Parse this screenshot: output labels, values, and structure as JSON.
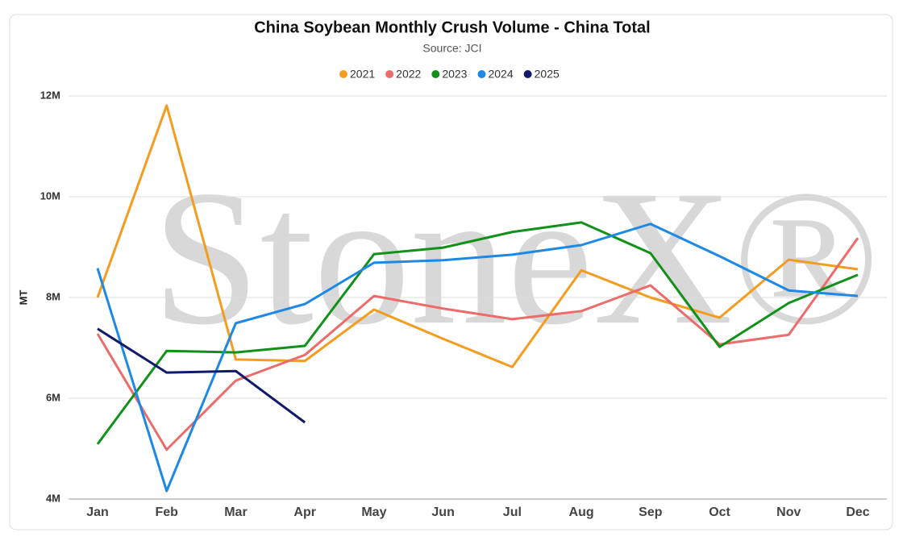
{
  "chart_data": {
    "type": "line",
    "title": "China Soybean Monthly Crush Volume - China Total",
    "subtitle": "Source: JCI",
    "ylabel": "MT",
    "watermark": "StoneX®",
    "categories": [
      "Jan",
      "Feb",
      "Mar",
      "Apr",
      "May",
      "Jun",
      "Jul",
      "Aug",
      "Sep",
      "Oct",
      "Nov",
      "Dec"
    ],
    "series": [
      {
        "name": "2021",
        "color": "#f39c1f",
        "values": [
          8000000,
          11810000,
          6770000,
          6740000,
          7760000,
          7180000,
          6620000,
          8540000,
          8000000,
          7600000,
          8750000,
          8560000
        ]
      },
      {
        "name": "2022",
        "color": "#ec6b6b",
        "values": [
          7280000,
          4980000,
          6350000,
          6860000,
          8030000,
          7780000,
          7570000,
          7730000,
          8240000,
          7070000,
          7260000,
          9180000
        ]
      },
      {
        "name": "2023",
        "color": "#12911a",
        "values": [
          5090000,
          6940000,
          6910000,
          7040000,
          8860000,
          8990000,
          9300000,
          9490000,
          8880000,
          7020000,
          7890000,
          8450000
        ]
      },
      {
        "name": "2024",
        "color": "#1e88e5",
        "values": [
          8580000,
          4160000,
          7490000,
          7870000,
          8690000,
          8740000,
          8850000,
          9040000,
          9460000,
          8820000,
          8140000,
          8030000
        ]
      },
      {
        "name": "2025",
        "color": "#101a6b",
        "values": [
          7380000,
          6510000,
          6540000,
          5520000,
          null,
          null,
          null,
          null,
          null,
          null,
          null,
          null
        ]
      }
    ],
    "ylim": [
      4000000,
      12000000
    ],
    "yticks": [
      {
        "value": 4000000,
        "label": "4M"
      },
      {
        "value": 6000000,
        "label": "6M"
      },
      {
        "value": 8000000,
        "label": "8M"
      },
      {
        "value": 10000000,
        "label": "10M"
      },
      {
        "value": 12000000,
        "label": "12M"
      }
    ],
    "grid": true,
    "legend": "top"
  }
}
